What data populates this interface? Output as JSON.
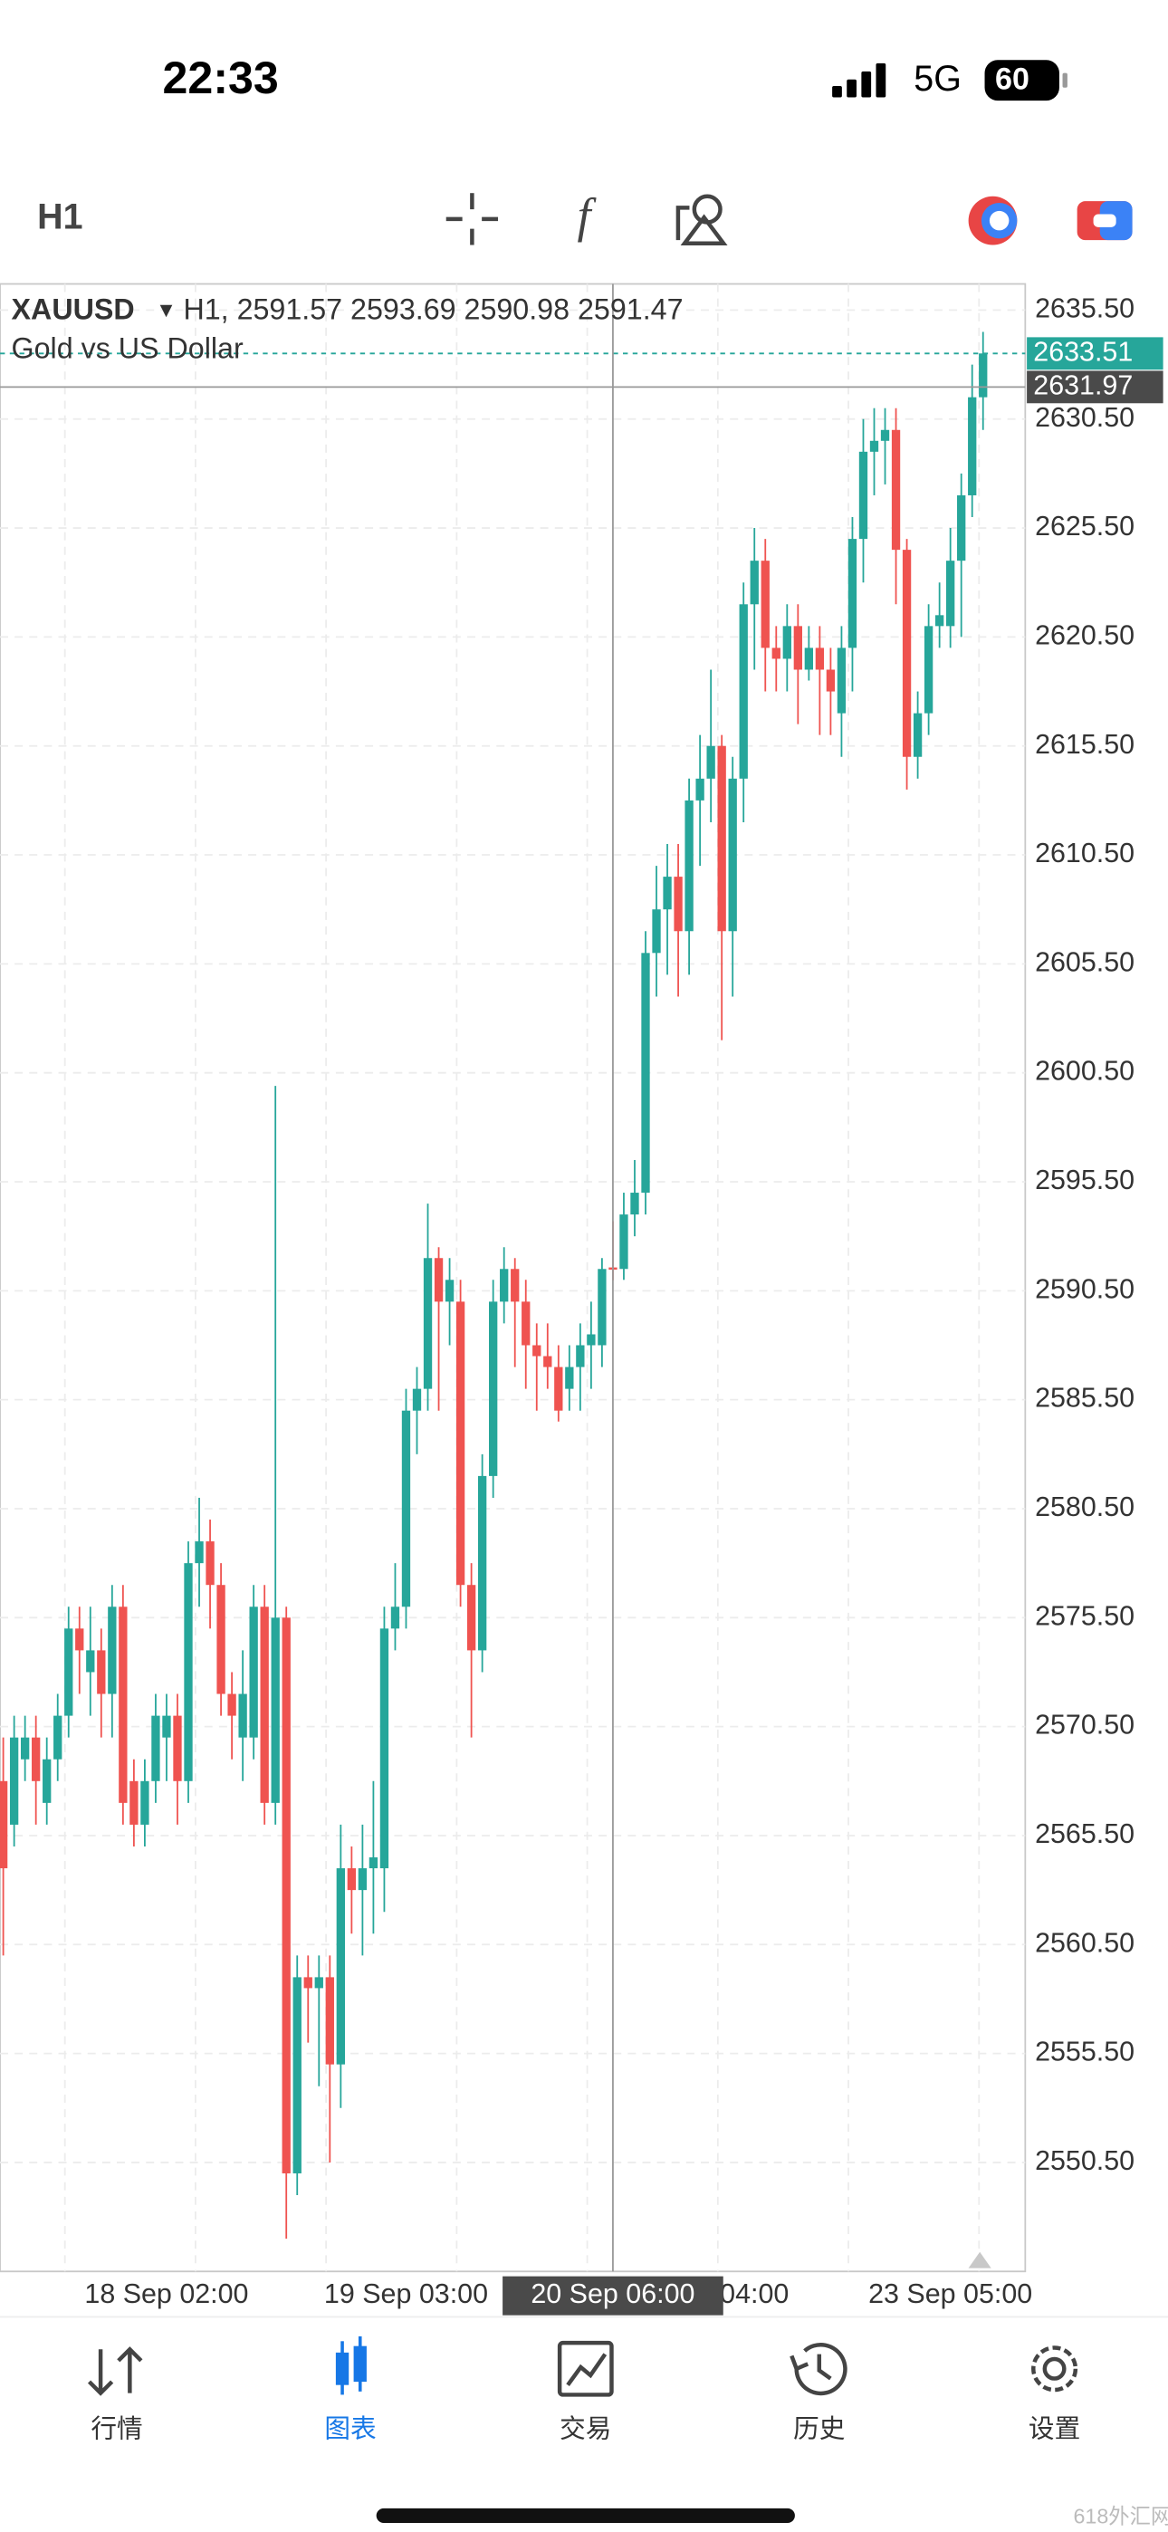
{
  "status_bar": {
    "time": "22:33",
    "network": "5G",
    "battery": "60"
  },
  "toolbar": {
    "timeframe": "H1"
  },
  "chart_data": {
    "type": "candlestick",
    "symbol": "XAUUSD",
    "info": "H1, 2591.57 2593.69 2590.98 2591.47",
    "subtitle": "Gold vs US Dollar",
    "up_color": "#26a69a",
    "down_color": "#ef5350",
    "categories": [
      null,
      null,
      null,
      null,
      null,
      null,
      null,
      null,
      null,
      null,
      null,
      null,
      null,
      null,
      null,
      "18 Sep 02:00",
      null,
      null,
      null,
      null,
      null,
      null,
      null,
      null,
      null,
      null,
      null,
      null,
      null,
      null,
      null,
      null,
      null,
      null,
      null,
      null,
      null,
      "19 Sep 03:00",
      null,
      null,
      null,
      null,
      null,
      null,
      null,
      null,
      null,
      null,
      null,
      null,
      null,
      null,
      null,
      null,
      null,
      null,
      "20 Sep 06:00",
      null,
      null,
      null,
      null,
      null,
      null,
      null,
      null,
      null,
      null,
      null,
      null,
      "04:00",
      null,
      null,
      null,
      null,
      null,
      null,
      null,
      null,
      null,
      null,
      null,
      null,
      null,
      null,
      null,
      null,
      null,
      "23 Sep 05:00",
      null,
      null,
      null
    ],
    "open": [
      2568,
      2566,
      2569,
      2570,
      2567,
      2569,
      2571,
      2575,
      2573,
      2574,
      2572,
      2576,
      2568,
      2566,
      2568,
      2570,
      2571,
      2568,
      2578,
      2579,
      2577,
      2572,
      2570,
      2570,
      2576,
      2567,
      2575.5,
      2550,
      2559,
      2558.5,
      2559,
      2555,
      2564,
      2563,
      2564,
      2564,
      2575,
      2576,
      2585,
      2586,
      2592,
      2590,
      2590,
      2577,
      2574,
      2582,
      2590,
      2591.5,
      2590,
      2588,
      2587.5,
      2587,
      2586,
      2587,
      2588,
      2588,
      2591.57,
      2591.5,
      2594,
      2595,
      2606,
      2608,
      2609.5,
      2607,
      2613,
      2614,
      2615.5,
      2607,
      2614,
      2622,
      2624,
      2620,
      2619.5,
      2621,
      2619,
      2620,
      2619,
      2617,
      2620,
      2625,
      2629,
      2629.5,
      2630,
      2624.5,
      2615,
      2617,
      2621,
      2621,
      2624,
      2627,
      2631.5
    ],
    "high": [
      2570,
      2571,
      2571,
      2571,
      2570,
      2572,
      2576,
      2576,
      2576,
      2575,
      2577,
      2577,
      2569,
      2569,
      2572,
      2572,
      2572,
      2579,
      2581,
      2580,
      2578,
      2573,
      2574,
      2577,
      2577,
      2599.9,
      2576,
      2560,
      2560,
      2560,
      2560,
      2566,
      2565,
      2566,
      2568,
      2576,
      2578,
      2586,
      2587,
      2594.5,
      2592.5,
      2592,
      2591,
      2578,
      2583,
      2591,
      2592.5,
      2592,
      2591,
      2589,
      2589,
      2588,
      2588,
      2589,
      2590,
      2592,
      2593.69,
      2595,
      2596.5,
      2607,
      2610,
      2611,
      2611,
      2614,
      2616,
      2619,
      2616,
      2615,
      2623,
      2625.5,
      2625,
      2621,
      2622,
      2622,
      2621,
      2621,
      2620,
      2621,
      2626,
      2630.5,
      2631,
      2631,
      2631,
      2625,
      2618,
      2622,
      2623,
      2625.5,
      2628,
      2633,
      2634.5
    ],
    "low": [
      2560,
      2565,
      2568,
      2566,
      2566,
      2568,
      2570,
      2572,
      2571,
      2570,
      2570,
      2566,
      2565,
      2565,
      2567,
      2568,
      2566,
      2567,
      2576,
      2575,
      2571,
      2569,
      2568,
      2569,
      2566,
      2566,
      2547,
      2549,
      2556,
      2554,
      2550.5,
      2553,
      2561,
      2560,
      2561,
      2562,
      2574,
      2575,
      2583,
      2585,
      2585,
      2588,
      2576,
      2570,
      2573,
      2581,
      2589,
      2587,
      2586,
      2585,
      2586,
      2584.5,
      2585,
      2585,
      2586,
      2587,
      2590.98,
      2591,
      2593,
      2594,
      2604,
      2605,
      2604,
      2605,
      2610,
      2612,
      2602,
      2604,
      2612,
      2619,
      2618,
      2618,
      2618,
      2616.5,
      2618.5,
      2616,
      2616,
      2615,
      2618,
      2623,
      2627,
      2627.5,
      2622,
      2613.5,
      2614,
      2616,
      2620,
      2620,
      2620.5,
      2626,
      2630
    ],
    "close": [
      2564,
      2570,
      2570,
      2568,
      2569,
      2571,
      2575,
      2574,
      2574,
      2572,
      2576,
      2567,
      2566,
      2568,
      2571,
      2571,
      2568,
      2578,
      2579,
      2577,
      2572,
      2571,
      2572,
      2576,
      2567,
      2575.5,
      2550,
      2559,
      2558.5,
      2559,
      2555,
      2564,
      2563,
      2564,
      2564.5,
      2575,
      2576,
      2585,
      2586,
      2592,
      2590,
      2591,
      2577,
      2574,
      2582,
      2590,
      2591.5,
      2590,
      2588,
      2587.5,
      2587,
      2585,
      2587,
      2588,
      2588.5,
      2591.5,
      2591.47,
      2594,
      2595,
      2606,
      2608,
      2609.5,
      2607,
      2613,
      2614,
      2615.5,
      2607,
      2614,
      2622,
      2624,
      2620,
      2619.5,
      2621,
      2619,
      2620,
      2619,
      2618,
      2620,
      2625,
      2629,
      2629.5,
      2630,
      2624.5,
      2615,
      2617,
      2621,
      2621.5,
      2624,
      2627,
      2631.5,
      2633.51
    ],
    "ylim": [
      2545.5,
      2636.7
    ],
    "yticks": [
      {
        "value": 2550.5,
        "label": "2550.50"
      },
      {
        "value": 2555.5,
        "label": "2555.50"
      },
      {
        "value": 2560.5,
        "label": "2560.50"
      },
      {
        "value": 2565.5,
        "label": "2565.50"
      },
      {
        "value": 2570.5,
        "label": "2570.50"
      },
      {
        "value": 2575.5,
        "label": "2575.50"
      },
      {
        "value": 2580.5,
        "label": "2580.50"
      },
      {
        "value": 2585.5,
        "label": "2585.50"
      },
      {
        "value": 2590.5,
        "label": "2590.50"
      },
      {
        "value": 2595.5,
        "label": "2595.50"
      },
      {
        "value": 2600.5,
        "label": "2600.50"
      },
      {
        "value": 2605.5,
        "label": "2605.50"
      },
      {
        "value": 2610.5,
        "label": "2610.50"
      },
      {
        "value": 2615.5,
        "label": "2615.50"
      },
      {
        "value": 2620.5,
        "label": "2620.50"
      },
      {
        "value": 2625.5,
        "label": "2625.50"
      },
      {
        "value": 2630.5,
        "label": "2630.50"
      },
      {
        "value": 2635.5,
        "label": "2635.50"
      }
    ],
    "last_price": 2633.51,
    "crosshair_price": 2631.97,
    "crosshair_index": 56,
    "grid": true
  },
  "nav": [
    {
      "label": "行情"
    },
    {
      "label": "图表"
    },
    {
      "label": "交易"
    },
    {
      "label": "历史"
    },
    {
      "label": "设置"
    }
  ],
  "watermark": "618外汇网"
}
